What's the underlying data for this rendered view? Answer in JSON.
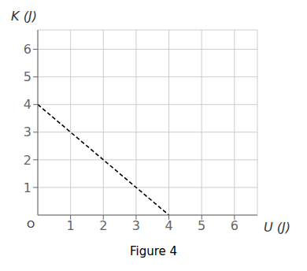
{
  "chart_data": {
    "type": "line",
    "title": "Figure 4",
    "xlabel": "U (J)",
    "ylabel": "K (J)",
    "annotations": [
      "O"
    ],
    "x": [
      0,
      4
    ],
    "values": [
      4,
      0
    ],
    "color": "#000000",
    "line_style": "dashed",
    "xlim": [
      0,
      6.7
    ],
    "ylim": [
      0,
      6.7
    ],
    "xticks": [
      1,
      2,
      3,
      4,
      5,
      6
    ],
    "yticks": [
      1,
      2,
      3,
      4,
      5,
      6
    ],
    "grid": true
  }
}
